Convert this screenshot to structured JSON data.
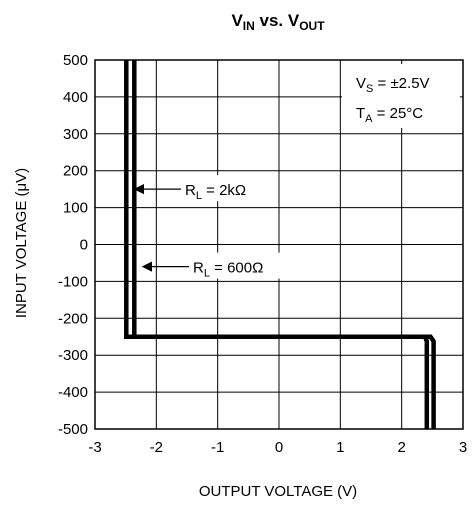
{
  "chart_data": {
    "type": "line",
    "title": {
      "parts": [
        {
          "t": "V",
          "sub": "IN"
        },
        {
          "t": " vs. V",
          "sub": "OUT"
        }
      ]
    },
    "xlabel": "OUTPUT VOLTAGE (V)",
    "ylabel": "INPUT VOLTAGE (μV)",
    "xlim": [
      -3,
      3
    ],
    "ylim": [
      -500,
      500
    ],
    "xticks": [
      -3,
      -2,
      -1,
      0,
      1,
      2,
      3
    ],
    "yticks": [
      500,
      400,
      300,
      200,
      100,
      0,
      -100,
      -200,
      -300,
      -400,
      -500
    ],
    "xtick_labels": [
      "-3",
      "-2",
      "-1",
      "0",
      "1",
      "2",
      "3"
    ],
    "ytick_labels": [
      "500",
      "400",
      "300",
      "200",
      "100",
      "0",
      "-100",
      "-200",
      "-300",
      "-400",
      "-500"
    ],
    "grid": true,
    "line_color": "#000000",
    "series": [
      {
        "label_parts": [
          {
            "t": "R",
            "sub": "L"
          },
          {
            "t": " = 2kΩ"
          }
        ],
        "x": [
          -2.49,
          -2.49,
          2.38,
          2.41,
          2.41
        ],
        "y": [
          500,
          -250,
          -250,
          -262,
          -500
        ]
      },
      {
        "label_parts": [
          {
            "t": "R",
            "sub": "L"
          },
          {
            "t": " = 600Ω"
          }
        ],
        "x": [
          -2.36,
          -2.36,
          2.47,
          2.52,
          2.52
        ],
        "y": [
          500,
          -250,
          -250,
          -262,
          -500
        ]
      }
    ],
    "annotations": [
      {
        "series_index": 0,
        "arrow_to_x": -2.38,
        "y": 150
      },
      {
        "series_index": 1,
        "arrow_to_x": -2.25,
        "y": -60
      }
    ],
    "conditions": [
      [
        {
          "t": "V",
          "sub": "S"
        },
        {
          "t": " = ±2.5V"
        }
      ],
      [
        {
          "t": "T",
          "sub": "A"
        },
        {
          "t": " = 25°C"
        }
      ]
    ]
  }
}
